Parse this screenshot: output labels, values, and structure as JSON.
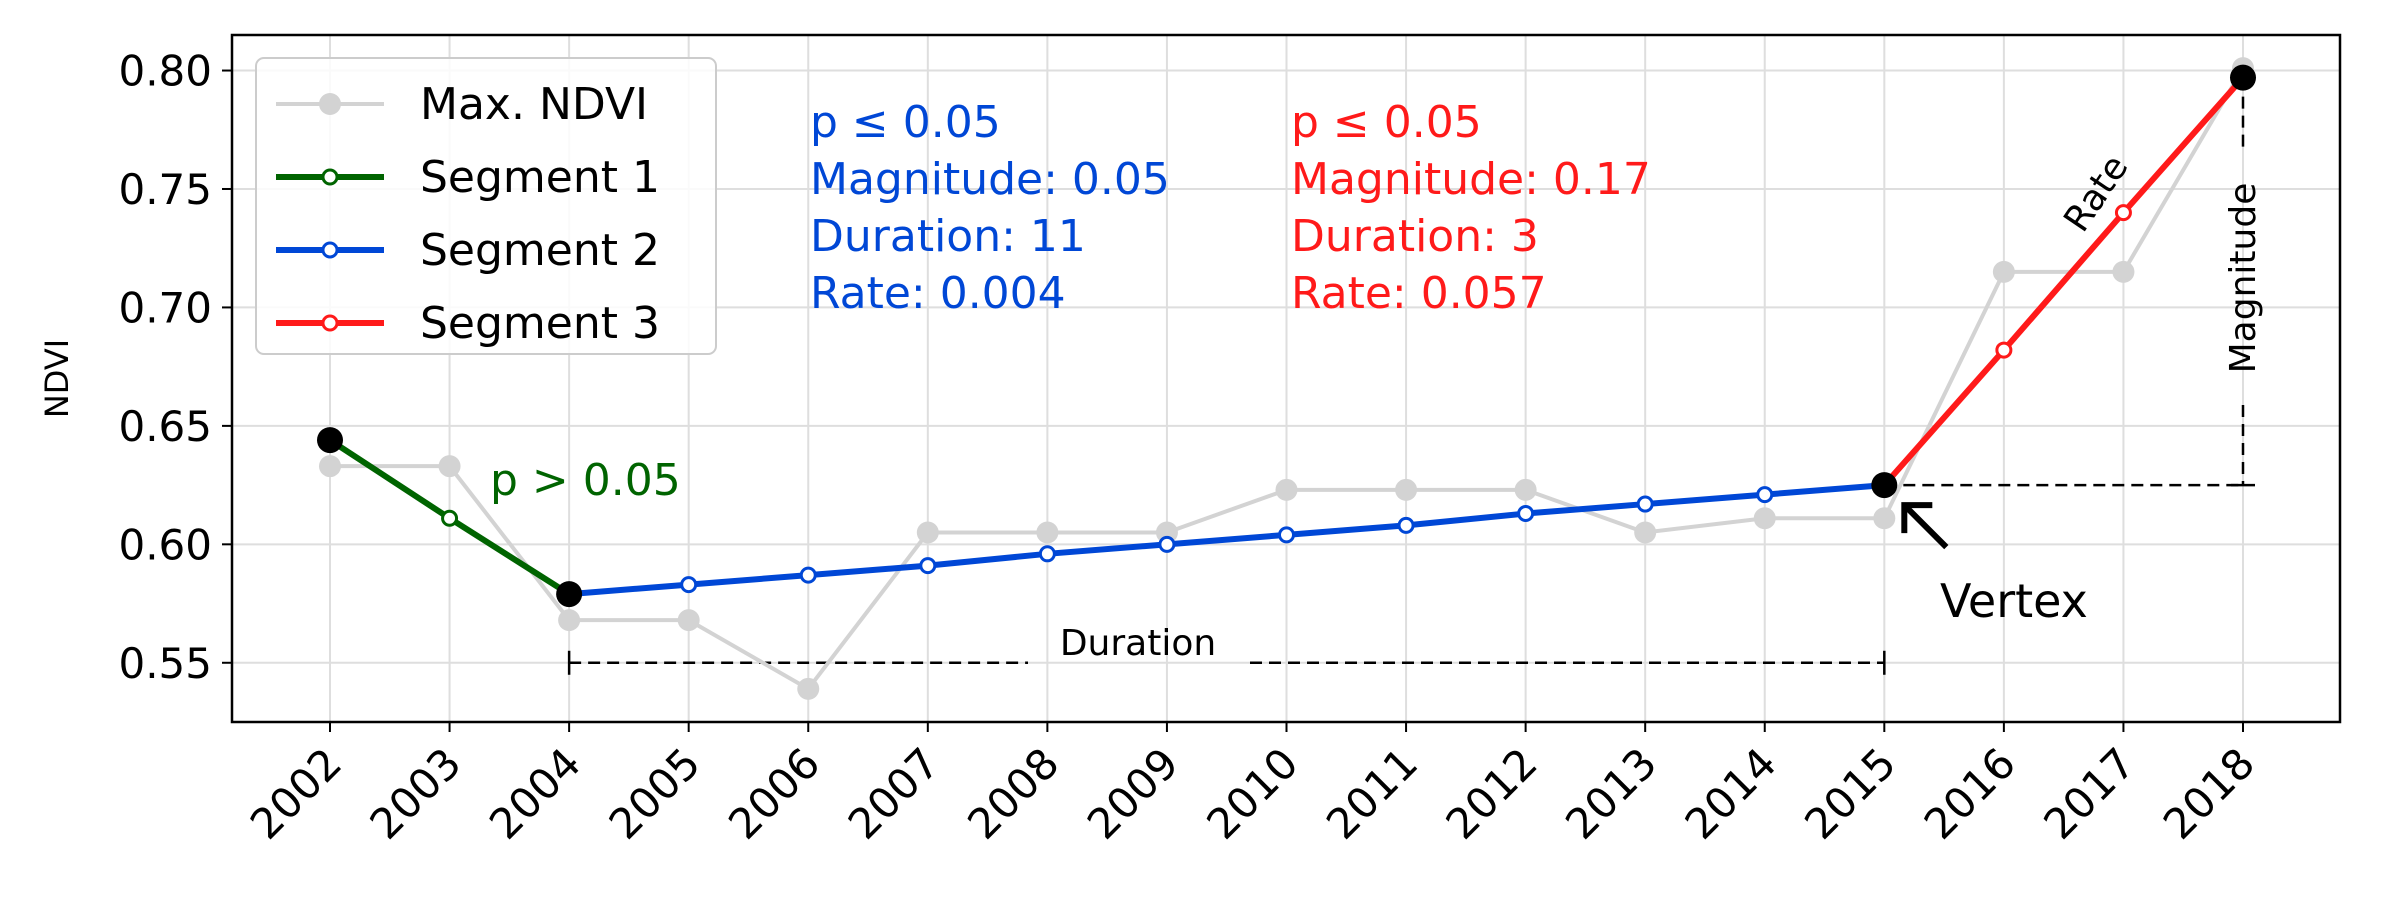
{
  "chart_data": {
    "type": "line",
    "title": "",
    "xlabel": "",
    "ylabel": "NDVI",
    "ylim": [
      0.525,
      0.815
    ],
    "yticks": [
      0.55,
      0.6,
      0.65,
      0.7,
      0.75,
      0.8
    ],
    "ytick_labels": [
      "0.55",
      "0.60",
      "0.65",
      "0.70",
      "0.75",
      "0.80"
    ],
    "xticks": [
      "2002",
      "2003",
      "2004",
      "2005",
      "2006",
      "2007",
      "2008",
      "2009",
      "2010",
      "2011",
      "2012",
      "2013",
      "2014",
      "2015",
      "2016",
      "2017",
      "2018"
    ],
    "grid": true,
    "series": [
      {
        "name": "Max. NDVI",
        "color": "#d3d3d3",
        "x": [
          2002,
          2003,
          2004,
          2005,
          2006,
          2007,
          2008,
          2009,
          2010,
          2011,
          2012,
          2013,
          2014,
          2015,
          2016,
          2017,
          2018
        ],
        "values": [
          0.633,
          0.633,
          0.568,
          0.568,
          0.539,
          0.605,
          0.605,
          0.605,
          0.623,
          0.623,
          0.623,
          0.605,
          0.611,
          0.611,
          0.715,
          0.715,
          0.801
        ]
      },
      {
        "name": "Segment 1",
        "color": "#006400",
        "x": [
          2002,
          2003,
          2004
        ],
        "values": [
          0.644,
          0.611,
          0.579
        ]
      },
      {
        "name": "Segment 2",
        "color": "#0047d6",
        "x": [
          2004,
          2005,
          2006,
          2007,
          2008,
          2009,
          2010,
          2011,
          2012,
          2013,
          2014,
          2015
        ],
        "values": [
          0.579,
          0.583,
          0.587,
          0.591,
          0.596,
          0.6,
          0.604,
          0.608,
          0.613,
          0.617,
          0.621,
          0.625
        ]
      },
      {
        "name": "Segment 3",
        "color": "#ff1a1a",
        "x": [
          2015,
          2016,
          2017,
          2018
        ],
        "values": [
          0.625,
          0.682,
          0.74,
          0.797
        ]
      }
    ],
    "vertices": {
      "x": [
        2002,
        2004,
        2015,
        2018
      ],
      "values": [
        0.644,
        0.579,
        0.625,
        0.797
      ]
    },
    "legend": {
      "position": "top-left",
      "entries": [
        "Max. NDVI",
        "Segment 1",
        "Segment 2",
        "Segment 3"
      ]
    },
    "annotations": {
      "seg1_text": "p > 0.05",
      "seg2_lines": [
        "p  ≤  0.05",
        "Magnitude: 0.05",
        "Duration: 11",
        "Rate: 0.004"
      ],
      "seg3_lines": [
        "p  ≤  0.05",
        "Magnitude: 0.17",
        "Duration: 3",
        "Rate: 0.057"
      ],
      "duration_label": "Duration",
      "rate_label": "Rate",
      "magnitude_label": "Magnitude",
      "vertex_label": "Vertex"
    }
  }
}
